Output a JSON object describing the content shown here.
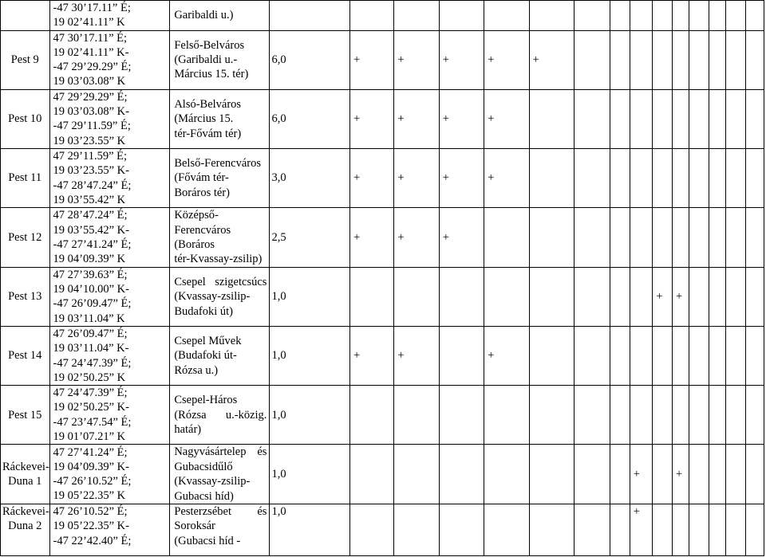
{
  "rows": [
    {
      "name": "",
      "coords": [
        "-47 30’17.11” É;",
        "19 02’41.11” K"
      ],
      "section": [
        "Garibaldi u.)"
      ],
      "width": "",
      "marks": [
        "",
        "",
        "",
        "",
        "",
        "",
        "",
        "",
        "",
        "",
        "",
        "",
        "",
        ""
      ]
    },
    {
      "name": "Pest 9",
      "coords": [
        "47 30’17.11” É;",
        "19 02’41.11” K-",
        "-47 29’29.29” É;",
        "19 03’03.08” K"
      ],
      "section": [
        "Felső-Belváros",
        "(Garibaldi u.-",
        "Március 15. tér)"
      ],
      "width": "6,0",
      "marks": [
        "+",
        "+",
        "+",
        "+",
        "+",
        "",
        "",
        "",
        "",
        "",
        "",
        "",
        "",
        ""
      ]
    },
    {
      "name": "Pest 10",
      "coords": [
        "47 29’29.29” É;",
        "19 03’03.08” K-",
        "-47 29’11.59” É;",
        "19 03’23.55” K"
      ],
      "section": [
        "Alsó-Belváros",
        "(Március 15.",
        "tér-Fővám tér)"
      ],
      "width": "6,0",
      "marks": [
        "+",
        "+",
        "+",
        "+",
        "",
        "",
        "",
        "",
        "",
        "",
        "",
        "",
        "",
        ""
      ]
    },
    {
      "name": "Pest 11",
      "coords": [
        "47 29’11.59” É;",
        "19 03’23.55” K-",
        "-47 28’47.24” É;",
        "19 03’55.42” K"
      ],
      "section": [
        "Belső-Ferencváros",
        "(Fővám tér-",
        "Boráros tér)"
      ],
      "width": "3,0",
      "marks": [
        "+",
        "+",
        "+",
        "+",
        "",
        "",
        "",
        "",
        "",
        "",
        "",
        "",
        "",
        ""
      ]
    },
    {
      "name": "Pest 12",
      "coords": [
        "47 28’47.24” É;",
        "19 03’55.42” K-",
        "-47 27’41.24” É;",
        "19 04’09.39” K"
      ],
      "section": [
        "Középső-",
        "Ferencváros",
        "(Boráros",
        "tér-Kvassay-zsilip)"
      ],
      "width": "2,5",
      "marks": [
        "+",
        "+",
        "+",
        "",
        "",
        "",
        "",
        "",
        "",
        "",
        "",
        "",
        "",
        ""
      ]
    },
    {
      "name": "Pest 13",
      "coords": [
        "47 27’39.63” É;",
        "19 04’10.00” K-",
        "-47 26’09.47” É;",
        "19 03’11.04” K"
      ],
      "section": [
        "Csepel szigetcsúcs",
        "(Kvassay-zsilip-",
        "Budafoki út)"
      ],
      "width": "1,0",
      "marks": [
        "",
        "",
        "",
        "",
        "",
        "",
        "",
        "",
        "+",
        "+",
        "",
        "",
        "",
        ""
      ]
    },
    {
      "name": "Pest 14",
      "coords": [
        "47 26’09.47” É;",
        "19 03’11.04” K-",
        "-47 24’47.39” É;",
        "19 02’50.25” K"
      ],
      "section": [
        "Csepel Művek",
        "(Budafoki út-",
        "Rózsa u.)"
      ],
      "width": "1,0",
      "marks": [
        "+",
        "+",
        "",
        "+",
        "",
        "",
        "",
        "",
        "",
        "",
        "",
        "",
        "",
        ""
      ]
    },
    {
      "name": "Pest 15",
      "coords": [
        "47 24’47.39” É;",
        "19 02’50.25” K-",
        "-47 23’47.54” É;",
        "19 01’07.21” K"
      ],
      "section": [
        "Csepel-Háros",
        "(Rózsa u.-közig.",
        "határ)"
      ],
      "width": "1,0",
      "marks": [
        "",
        "",
        "",
        "",
        "",
        "",
        "",
        "",
        "",
        "",
        "",
        "",
        "",
        ""
      ]
    },
    {
      "name": "Ráckevei-Duna 1",
      "coords": [
        "47 27’41.24” É;",
        "19 04’09.39” K-",
        "-47 26’10.52” É;",
        "19 05’22.35” K"
      ],
      "section": [
        "Nagyvásártelep és",
        "Gubacsidűlő",
        "(Kvassay-zsilip-",
        "Gubacsi híd)"
      ],
      "width": "1,0",
      "marks": [
        "",
        "",
        "",
        "",
        "",
        "",
        "",
        "+",
        "",
        "+",
        "",
        "",
        "",
        ""
      ]
    },
    {
      "name": "Ráckevei-Duna 2",
      "coords": [
        "47 26’10.52” É;",
        "19 05’22.35” K-",
        "-47 22’42.40” É;"
      ],
      "section": [
        "Pesterzsébet és",
        "Soroksár",
        "(Gubacsi híd -"
      ],
      "width": "1,0",
      "marks": [
        "",
        "",
        "",
        "",
        "",
        "",
        "",
        "+",
        "",
        "",
        "",
        "",
        "",
        ""
      ]
    }
  ]
}
